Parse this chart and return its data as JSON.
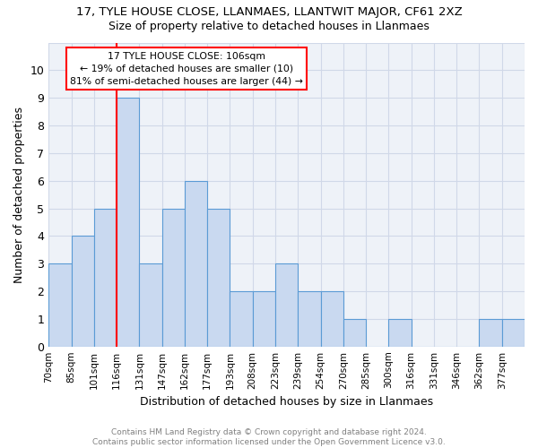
{
  "title": "17, TYLE HOUSE CLOSE, LLANMAES, LLANTWIT MAJOR, CF61 2XZ",
  "subtitle": "Size of property relative to detached houses in Llanmaes",
  "xlabel": "Distribution of detached houses by size in Llanmaes",
  "ylabel": "Number of detached properties",
  "bar_values": [
    3,
    4,
    5,
    9,
    3,
    5,
    6,
    5,
    2,
    2,
    3,
    2,
    2,
    1,
    0,
    1,
    0,
    0,
    0,
    1,
    1
  ],
  "bar_labels": [
    "70sqm",
    "85sqm",
    "101sqm",
    "116sqm",
    "131sqm",
    "147sqm",
    "162sqm",
    "177sqm",
    "193sqm",
    "208sqm",
    "223sqm",
    "239sqm",
    "254sqm",
    "270sqm",
    "285sqm",
    "300sqm",
    "316sqm",
    "331sqm",
    "346sqm",
    "362sqm",
    "377sqm"
  ],
  "bar_color": "#c9d9f0",
  "bar_edge_color": "#5b9bd5",
  "ylim": [
    0,
    11
  ],
  "yticks": [
    0,
    1,
    2,
    3,
    4,
    5,
    6,
    7,
    8,
    9,
    10,
    11
  ],
  "ytick_labels": [
    "0",
    "1",
    "2",
    "3",
    "4",
    "5",
    "6",
    "7",
    "8",
    "9",
    "10",
    ""
  ],
  "annotation_text": "17 TYLE HOUSE CLOSE: 106sqm\n← 19% of detached houses are smaller (10)\n81% of semi-detached houses are larger (44) →",
  "annotation_box_color": "white",
  "annotation_box_edge_color": "red",
  "vline_color": "red",
  "footer_text": "Contains HM Land Registry data © Crown copyright and database right 2024.\nContains public sector information licensed under the Open Government Licence v3.0.",
  "grid_color": "#d0d8e8",
  "background_color": "#eef2f8"
}
